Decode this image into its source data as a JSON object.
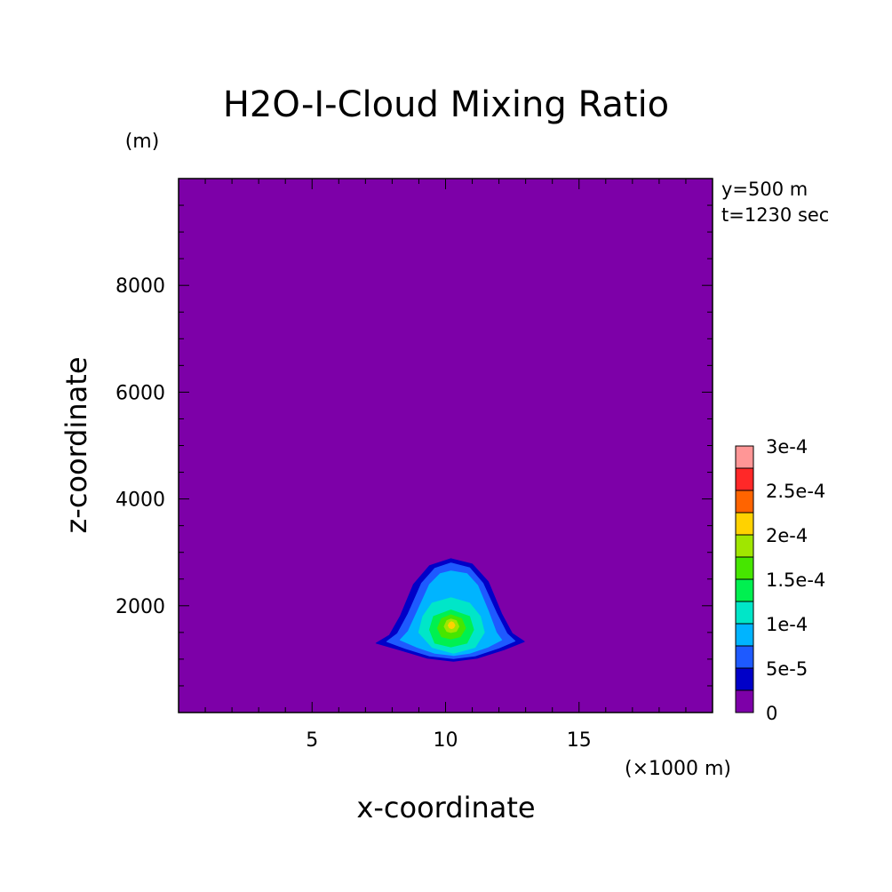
{
  "chart_data": {
    "type": "heatmap",
    "title": "H2O-I-Cloud Mixing Ratio",
    "xlabel": "x-coordinate",
    "ylabel": "z-coordinate",
    "x_unit": "(×1000 m)",
    "y_unit": "(m)",
    "info": [
      "y=500 m",
      "t=1230 sec"
    ],
    "xlim": [
      0,
      20
    ],
    "ylim": [
      0,
      10000
    ],
    "x_ticks": [
      5,
      10,
      15
    ],
    "y_ticks": [
      2000,
      4000,
      6000,
      8000
    ],
    "background_level": 0,
    "colorbar": {
      "levels": [
        0,
        5e-05,
        0.0001,
        0.00015,
        0.0002,
        0.00025,
        0.0003
      ],
      "labels": [
        "0",
        "5e-5",
        "1e-4",
        "1.5e-4",
        "2e-4",
        "2.5e-4",
        "3e-4"
      ],
      "colors": [
        "#7d00a8",
        "#0000c8",
        "#1e5aff",
        "#00b4ff",
        "#00e6c8",
        "#00f050",
        "#46e600",
        "#a0e600",
        "#ffd200",
        "#ff6400",
        "#ff2828",
        "#ff9696"
      ]
    },
    "contours": [
      {
        "level": 2.5e-05,
        "color": "#0000c8",
        "points": [
          [
            7.4,
            1300
          ],
          [
            7.9,
            1450
          ],
          [
            8.3,
            1800
          ],
          [
            8.8,
            2400
          ],
          [
            9.4,
            2750
          ],
          [
            10.2,
            2880
          ],
          [
            11.0,
            2780
          ],
          [
            11.6,
            2450
          ],
          [
            12.1,
            1850
          ],
          [
            12.5,
            1480
          ],
          [
            12.95,
            1330
          ],
          [
            12.2,
            1180
          ],
          [
            11.2,
            1020
          ],
          [
            10.3,
            960
          ],
          [
            9.3,
            1020
          ],
          [
            8.3,
            1170
          ]
        ]
      },
      {
        "level": 5e-05,
        "color": "#1e5aff",
        "points": [
          [
            7.8,
            1330
          ],
          [
            8.2,
            1480
          ],
          [
            8.6,
            1850
          ],
          [
            9.1,
            2420
          ],
          [
            9.6,
            2700
          ],
          [
            10.2,
            2800
          ],
          [
            10.9,
            2710
          ],
          [
            11.4,
            2420
          ],
          [
            11.9,
            1870
          ],
          [
            12.3,
            1480
          ],
          [
            12.6,
            1340
          ],
          [
            12.0,
            1210
          ],
          [
            11.1,
            1060
          ],
          [
            10.3,
            1010
          ],
          [
            9.4,
            1060
          ],
          [
            8.5,
            1200
          ]
        ]
      },
      {
        "level": 7.5e-05,
        "color": "#00b4ff",
        "points": [
          [
            8.3,
            1360
          ],
          [
            8.6,
            1520
          ],
          [
            8.95,
            1900
          ],
          [
            9.4,
            2400
          ],
          [
            9.8,
            2600
          ],
          [
            10.2,
            2650
          ],
          [
            10.8,
            2600
          ],
          [
            11.2,
            2380
          ],
          [
            11.6,
            1900
          ],
          [
            11.9,
            1500
          ],
          [
            12.1,
            1360
          ],
          [
            11.6,
            1230
          ],
          [
            10.9,
            1110
          ],
          [
            10.3,
            1070
          ],
          [
            9.6,
            1110
          ],
          [
            8.9,
            1230
          ]
        ]
      },
      {
        "level": 0.0001,
        "color": "#00e6c8",
        "points": [
          [
            9.0,
            1500
          ],
          [
            9.15,
            1800
          ],
          [
            9.5,
            2050
          ],
          [
            10.2,
            2150
          ],
          [
            10.9,
            2050
          ],
          [
            11.3,
            1800
          ],
          [
            11.45,
            1500
          ],
          [
            11.1,
            1220
          ],
          [
            10.3,
            1110
          ],
          [
            9.5,
            1220
          ]
        ]
      },
      {
        "level": 0.000125,
        "color": "#00f050",
        "points": [
          [
            9.4,
            1550
          ],
          [
            9.55,
            1800
          ],
          [
            10.2,
            1920
          ],
          [
            10.9,
            1800
          ],
          [
            11.05,
            1550
          ],
          [
            10.8,
            1300
          ],
          [
            10.2,
            1230
          ],
          [
            9.6,
            1300
          ]
        ]
      },
      {
        "level": 0.00015,
        "color": "#46e600",
        "points": [
          [
            9.7,
            1580
          ],
          [
            9.85,
            1760
          ],
          [
            10.2,
            1830
          ],
          [
            10.6,
            1760
          ],
          [
            10.75,
            1580
          ],
          [
            10.55,
            1420
          ],
          [
            10.2,
            1380
          ],
          [
            9.85,
            1420
          ]
        ]
      },
      {
        "level": 0.000175,
        "color": "#a0e600",
        "points": [
          [
            9.95,
            1610
          ],
          [
            10.05,
            1720
          ],
          [
            10.2,
            1750
          ],
          [
            10.4,
            1720
          ],
          [
            10.5,
            1610
          ],
          [
            10.4,
            1520
          ],
          [
            10.2,
            1500
          ],
          [
            10.05,
            1520
          ]
        ]
      },
      {
        "level": 0.0002,
        "color": "#ffd200",
        "points": [
          [
            10.1,
            1630
          ],
          [
            10.15,
            1680
          ],
          [
            10.22,
            1700
          ],
          [
            10.3,
            1680
          ],
          [
            10.35,
            1630
          ],
          [
            10.3,
            1585
          ],
          [
            10.22,
            1570
          ],
          [
            10.15,
            1585
          ]
        ]
      }
    ]
  }
}
